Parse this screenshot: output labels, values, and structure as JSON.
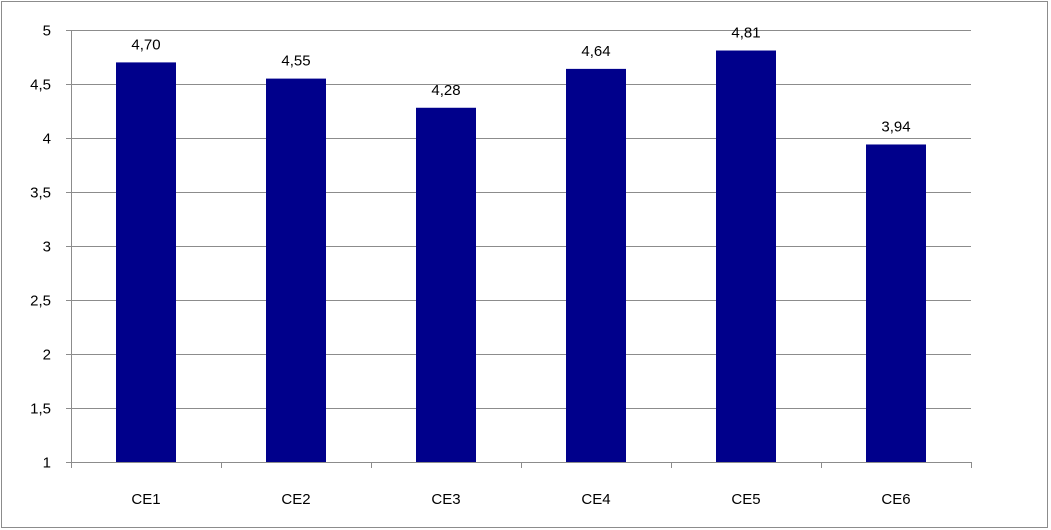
{
  "chart_data": {
    "type": "bar",
    "categories": [
      "CE1",
      "CE2",
      "CE3",
      "CE4",
      "CE5",
      "CE6"
    ],
    "values": [
      4.7,
      4.55,
      4.28,
      4.64,
      4.81,
      3.94
    ],
    "data_labels": [
      "4,70",
      "4,55",
      "4,28",
      "4,64",
      "4,81",
      "3,94"
    ],
    "ylim": [
      1,
      5
    ],
    "yticks": [
      1,
      1.5,
      2,
      2.5,
      3,
      3.5,
      4,
      4.5,
      5
    ],
    "ytick_labels": [
      "1",
      "1,5",
      "2",
      "2,5",
      "3",
      "3,5",
      "4",
      "4,5",
      "5"
    ],
    "grid": true,
    "legend": "none",
    "title": "",
    "xlabel": "",
    "ylabel": "",
    "colors": {
      "bar": "#00008b",
      "grid": "#8c8c8c",
      "axis": "#8c8c8c"
    }
  }
}
